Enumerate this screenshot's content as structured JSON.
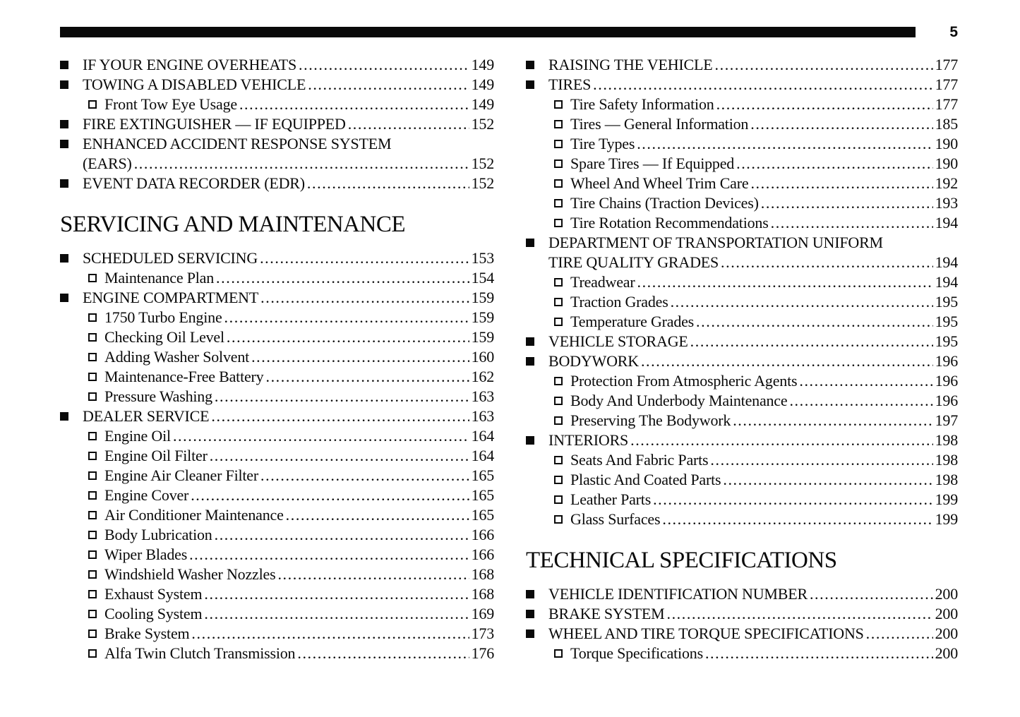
{
  "page": {
    "number": "5"
  },
  "colors": {
    "ink": "#0a0a0a",
    "paper": "#ffffff"
  },
  "columns": {
    "left": {
      "sections": [
        {
          "header": null,
          "items": [
            {
              "level": 1,
              "label": "IF YOUR ENGINE OVERHEATS",
              "page": "149"
            },
            {
              "level": 1,
              "label": "TOWING A DISABLED VEHICLE",
              "page": "149"
            },
            {
              "level": 2,
              "label": "Front Tow Eye Usage",
              "page": "149"
            },
            {
              "level": 1,
              "label": "FIRE EXTINGUISHER — IF EQUIPPED",
              "page": "152"
            },
            {
              "level": 1,
              "label": "ENHANCED ACCIDENT RESPONSE SYSTEM",
              "label2": "(EARS)",
              "page": "152"
            },
            {
              "level": 1,
              "label": "EVENT DATA RECORDER (EDR)",
              "page": "152"
            }
          ]
        },
        {
          "header": "SERVICING AND MAINTENANCE",
          "items": [
            {
              "level": 1,
              "label": "SCHEDULED SERVICING",
              "page": "153"
            },
            {
              "level": 2,
              "label": "Maintenance Plan",
              "page": "154"
            },
            {
              "level": 1,
              "label": "ENGINE COMPARTMENT",
              "page": "159"
            },
            {
              "level": 2,
              "label": "1750 Turbo Engine",
              "page": "159"
            },
            {
              "level": 2,
              "label": "Checking Oil Level",
              "page": "159"
            },
            {
              "level": 2,
              "label": "Adding Washer Solvent",
              "page": "160"
            },
            {
              "level": 2,
              "label": "Maintenance-Free Battery",
              "page": "162"
            },
            {
              "level": 2,
              "label": "Pressure Washing",
              "page": "163"
            },
            {
              "level": 1,
              "label": "DEALER SERVICE",
              "page": "163"
            },
            {
              "level": 2,
              "label": "Engine Oil",
              "page": "164"
            },
            {
              "level": 2,
              "label": "Engine Oil Filter",
              "page": "164"
            },
            {
              "level": 2,
              "label": "Engine Air Cleaner Filter",
              "page": "165"
            },
            {
              "level": 2,
              "label": "Engine Cover",
              "page": "165"
            },
            {
              "level": 2,
              "label": "Air Conditioner Maintenance",
              "page": "165"
            },
            {
              "level": 2,
              "label": "Body Lubrication",
              "page": "166"
            },
            {
              "level": 2,
              "label": "Wiper Blades",
              "page": "166"
            },
            {
              "level": 2,
              "label": "Windshield Washer Nozzles",
              "page": "168"
            },
            {
              "level": 2,
              "label": "Exhaust System",
              "page": "168"
            },
            {
              "level": 2,
              "label": "Cooling System",
              "page": "169"
            },
            {
              "level": 2,
              "label": "Brake System",
              "page": "173"
            },
            {
              "level": 2,
              "label": "Alfa Twin Clutch Transmission",
              "page": "176"
            }
          ]
        }
      ]
    },
    "right": {
      "sections": [
        {
          "header": null,
          "items": [
            {
              "level": 1,
              "label": "RAISING THE VEHICLE",
              "page": "177"
            },
            {
              "level": 1,
              "label": "TIRES",
              "page": "177"
            },
            {
              "level": 2,
              "label": "Tire Safety Information",
              "page": "177"
            },
            {
              "level": 2,
              "label": "Tires — General Information",
              "page": "185"
            },
            {
              "level": 2,
              "label": "Tire Types",
              "page": "190"
            },
            {
              "level": 2,
              "label": "Spare Tires — If Equipped",
              "page": "190"
            },
            {
              "level": 2,
              "label": "Wheel And Wheel Trim Care",
              "page": "192"
            },
            {
              "level": 2,
              "label": "Tire Chains (Traction Devices)",
              "page": "193"
            },
            {
              "level": 2,
              "label": "Tire Rotation Recommendations",
              "page": "194"
            },
            {
              "level": 1,
              "label": "DEPARTMENT OF TRANSPORTATION UNIFORM",
              "label2": "TIRE QUALITY GRADES",
              "page": "194"
            },
            {
              "level": 2,
              "label": "Treadwear",
              "page": "194"
            },
            {
              "level": 2,
              "label": "Traction Grades",
              "page": "195"
            },
            {
              "level": 2,
              "label": "Temperature Grades",
              "page": "195"
            },
            {
              "level": 1,
              "label": "VEHICLE STORAGE",
              "page": "195"
            },
            {
              "level": 1,
              "label": "BODYWORK",
              "page": "196"
            },
            {
              "level": 2,
              "label": "Protection From Atmospheric Agents",
              "page": "196"
            },
            {
              "level": 2,
              "label": "Body And Underbody Maintenance",
              "page": "196"
            },
            {
              "level": 2,
              "label": "Preserving The Bodywork",
              "page": "197"
            },
            {
              "level": 1,
              "label": "INTERIORS",
              "page": "198"
            },
            {
              "level": 2,
              "label": "Seats And Fabric Parts",
              "page": "198"
            },
            {
              "level": 2,
              "label": "Plastic And Coated Parts",
              "page": "198"
            },
            {
              "level": 2,
              "label": "Leather Parts",
              "page": "199"
            },
            {
              "level": 2,
              "label": "Glass Surfaces",
              "page": "199"
            }
          ]
        },
        {
          "header": "TECHNICAL SPECIFICATIONS",
          "items": [
            {
              "level": 1,
              "label": "VEHICLE IDENTIFICATION NUMBER",
              "page": "200"
            },
            {
              "level": 1,
              "label": "BRAKE SYSTEM",
              "page": "200"
            },
            {
              "level": 1,
              "label": "WHEEL AND TIRE TORQUE SPECIFICATIONS",
              "page": "200"
            },
            {
              "level": 2,
              "label": "Torque Specifications",
              "page": "200"
            }
          ]
        }
      ]
    }
  }
}
